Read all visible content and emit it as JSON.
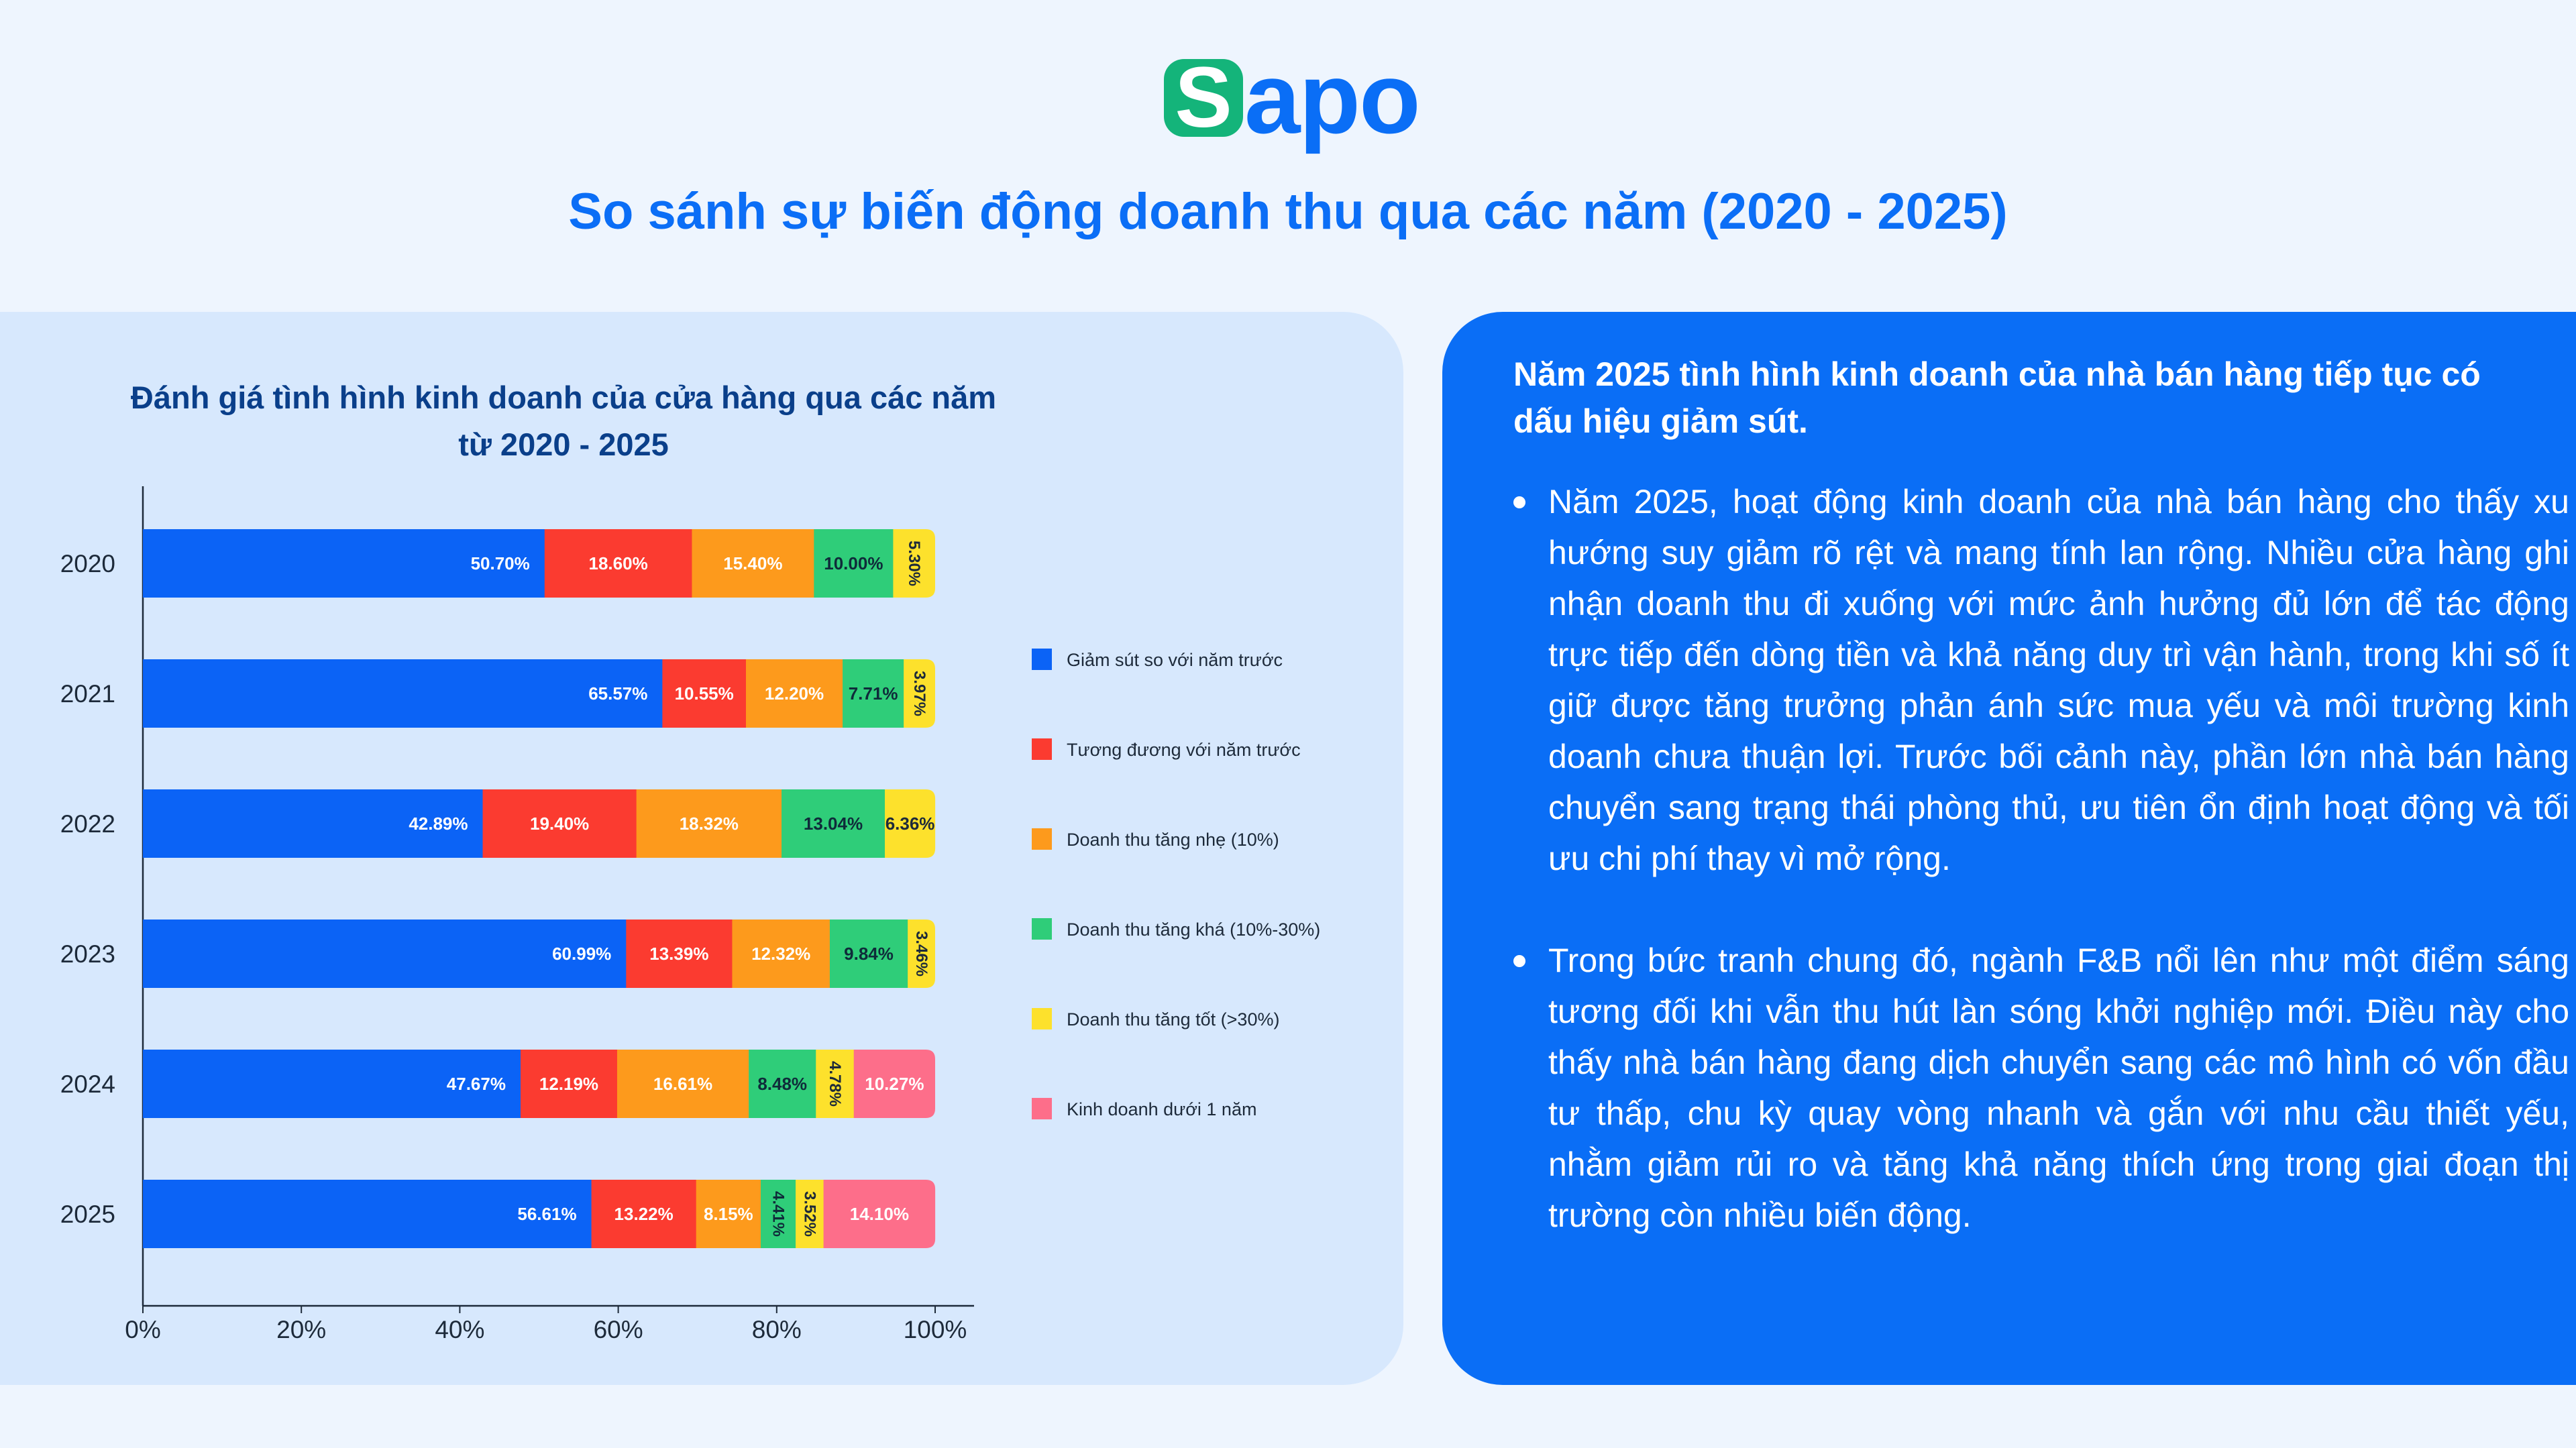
{
  "brand": {
    "logo_letter": "S",
    "logo_rest": "apo",
    "logo_badge_color": "#14b47a",
    "logo_text_color": "#0a6ef6"
  },
  "page_title": "So sánh sự biến động doanh thu qua các năm (2020 - 2025)",
  "chart_data": {
    "type": "bar",
    "orientation": "horizontal",
    "stacked": true,
    "title": "Đánh giá tình hình kinh doanh của cửa hàng qua các năm từ 2020 - 2025",
    "categories": [
      "2020",
      "2021",
      "2022",
      "2023",
      "2024",
      "2025"
    ],
    "xlim": [
      0,
      100
    ],
    "x_ticks": [
      "0%",
      "20%",
      "40%",
      "60%",
      "80%",
      "100%"
    ],
    "grid": false,
    "legend_position": "right",
    "series": [
      {
        "name": "Giảm sút so với năm trước",
        "color": "#0b63f6",
        "values": [
          50.7,
          65.57,
          42.89,
          60.99,
          47.67,
          56.61
        ],
        "labels": [
          "50.70%",
          "65.57%",
          "42.89%",
          "60.99%",
          "47.67%",
          "56.61%"
        ]
      },
      {
        "name": "Tương đương với năm trước",
        "color": "#fb3b30",
        "values": [
          18.6,
          10.55,
          19.4,
          13.39,
          12.19,
          13.22
        ],
        "labels": [
          "18.60%",
          "10.55%",
          "19.40%",
          "13.39%",
          "12.19%",
          "13.22%"
        ]
      },
      {
        "name": "Doanh thu tăng nhẹ (10%)",
        "color": "#fd9a1c",
        "values": [
          15.4,
          12.2,
          18.32,
          12.32,
          16.61,
          8.15
        ],
        "labels": [
          "15.40%",
          "12.20%",
          "18.32%",
          "12.32%",
          "16.61%",
          "8.15%"
        ]
      },
      {
        "name": "Doanh thu tăng khá (10%-30%)",
        "color": "#2fcd79",
        "values": [
          10.0,
          7.71,
          13.04,
          9.84,
          8.48,
          4.41
        ],
        "labels": [
          "10.00%",
          "7.71%",
          "13.04%",
          "9.84%",
          "8.48%",
          "4.41%"
        ]
      },
      {
        "name": "Doanh thu tăng tốt (>30%)",
        "color": "#fde12c",
        "values": [
          5.3,
          3.97,
          6.36,
          3.46,
          4.78,
          3.52
        ],
        "labels": [
          "5.30%",
          "3.97%",
          "6.36%",
          "3.46%",
          "4.78%",
          "3.52%"
        ]
      },
      {
        "name": "Kinh doanh dưới 1 năm",
        "color": "#fd6e8a",
        "values": [
          0,
          0,
          0,
          0,
          10.27,
          14.1
        ],
        "labels": [
          "",
          "",
          "",
          "",
          "10.27%",
          "14.10%"
        ]
      }
    ]
  },
  "insight": {
    "heading": "Năm 2025 tình hình kinh doanh của nhà bán hàng tiếp tục có dấu hiệu giảm sút.",
    "bullets": [
      "Năm 2025, hoạt động kinh doanh của nhà bán hàng cho thấy xu hướng suy giảm rõ rệt và mang tính lan rộng. Nhiều cửa hàng ghi nhận doanh thu đi xuống với mức ảnh hưởng đủ lớn để tác động trực tiếp đến dòng tiền và khả năng duy trì vận hành, trong khi số ít giữ được tăng trưởng phản ánh sức mua yếu và môi trường kinh doanh chưa thuận lợi. Trước bối cảnh này, phần lớn nhà bán hàng chuyển sang trạng thái phòng thủ, ưu tiên ổn định hoạt động và tối ưu chi phí thay vì mở rộng.",
      "Trong bức tranh chung đó, ngành F&B nổi lên như một điểm sáng tương đối khi vẫn thu hút làn sóng khởi nghiệp mới. Điều này cho thấy nhà bán hàng đang dịch chuyển sang các mô hình có vốn đầu tư thấp, chu kỳ quay vòng nhanh và gắn với nhu cầu thiết yếu, nhằm giảm rủi ro và tăng khả năng thích ứng trong giai đoạn thị trường còn nhiều biến động."
    ]
  }
}
